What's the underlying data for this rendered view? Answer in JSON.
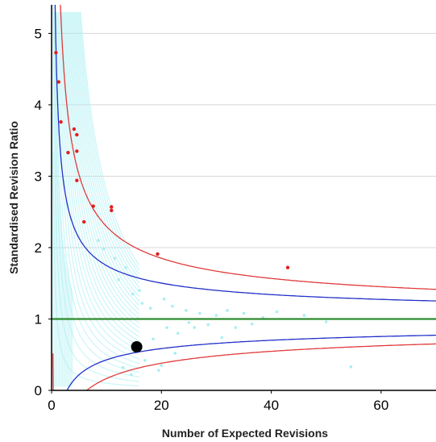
{
  "chart_data": {
    "type": "scatter",
    "title": "",
    "xlabel": "Number of Expected Revisions",
    "ylabel": "Standardised Revision Ratio",
    "xlim": [
      0,
      70
    ],
    "ylim": [
      0,
      5.4
    ],
    "x_ticks": [
      "0",
      "20",
      "40",
      "60"
    ],
    "y_ticks": [
      "0",
      "1",
      "2",
      "3",
      "4",
      "5"
    ],
    "grid": "horizontal",
    "legend": "none",
    "reference_line": {
      "y": 1,
      "color": "#2e8b2e"
    },
    "control_limits": [
      {
        "name": "",
        "color": "#2230c8",
        "z": 1.96
      },
      {
        "name": "",
        "color": "#e03a3a",
        "z": 3.09
      }
    ],
    "highlight_point": {
      "x": 15.5,
      "y": 0.61,
      "color": "#000000"
    },
    "outliers": {
      "color": "#e02020",
      "points": [
        {
          "x": 0.8,
          "y": 4.73
        },
        {
          "x": 1.3,
          "y": 4.32
        },
        {
          "x": 1.7,
          "y": 3.76
        },
        {
          "x": 4.1,
          "y": 3.66
        },
        {
          "x": 4.6,
          "y": 3.58
        },
        {
          "x": 3.0,
          "y": 3.33
        },
        {
          "x": 4.6,
          "y": 3.35
        },
        {
          "x": 4.6,
          "y": 2.94
        },
        {
          "x": 7.6,
          "y": 2.58
        },
        {
          "x": 10.9,
          "y": 2.57
        },
        {
          "x": 10.9,
          "y": 2.52
        },
        {
          "x": 5.9,
          "y": 2.36
        },
        {
          "x": 19.3,
          "y": 1.91
        },
        {
          "x": 43.0,
          "y": 1.72
        }
      ]
    },
    "background_points": {
      "color": "#a8eef2",
      "points": [
        {
          "x": 12.2,
          "y": 1.55
        },
        {
          "x": 14.8,
          "y": 1.35
        },
        {
          "x": 16.5,
          "y": 1.22
        },
        {
          "x": 18.0,
          "y": 1.15
        },
        {
          "x": 20.5,
          "y": 1.28
        },
        {
          "x": 22.0,
          "y": 1.18
        },
        {
          "x": 24.5,
          "y": 1.12
        },
        {
          "x": 27.0,
          "y": 1.08
        },
        {
          "x": 25.0,
          "y": 0.95
        },
        {
          "x": 21.0,
          "y": 0.88
        },
        {
          "x": 18.5,
          "y": 0.72
        },
        {
          "x": 23.0,
          "y": 0.8
        },
        {
          "x": 26.0,
          "y": 0.88
        },
        {
          "x": 28.5,
          "y": 0.92
        },
        {
          "x": 30.0,
          "y": 1.05
        },
        {
          "x": 32.0,
          "y": 1.12
        },
        {
          "x": 35.0,
          "y": 1.08
        },
        {
          "x": 38.5,
          "y": 1.02
        },
        {
          "x": 41.0,
          "y": 1.1
        },
        {
          "x": 46.0,
          "y": 1.05
        },
        {
          "x": 50.0,
          "y": 0.96
        },
        {
          "x": 54.5,
          "y": 0.33
        },
        {
          "x": 22.5,
          "y": 0.52
        },
        {
          "x": 20.0,
          "y": 0.35
        },
        {
          "x": 17.0,
          "y": 0.42
        },
        {
          "x": 19.5,
          "y": 0.28
        },
        {
          "x": 13.0,
          "y": 0.32
        },
        {
          "x": 14.5,
          "y": 0.22
        },
        {
          "x": 16.0,
          "y": 1.4
        },
        {
          "x": 13.5,
          "y": 1.72
        },
        {
          "x": 11.5,
          "y": 1.85
        },
        {
          "x": 9.5,
          "y": 1.98
        },
        {
          "x": 8.5,
          "y": 2.1
        },
        {
          "x": 31.0,
          "y": 0.74
        },
        {
          "x": 33.5,
          "y": 0.88
        },
        {
          "x": 36.5,
          "y": 0.93
        }
      ]
    }
  }
}
